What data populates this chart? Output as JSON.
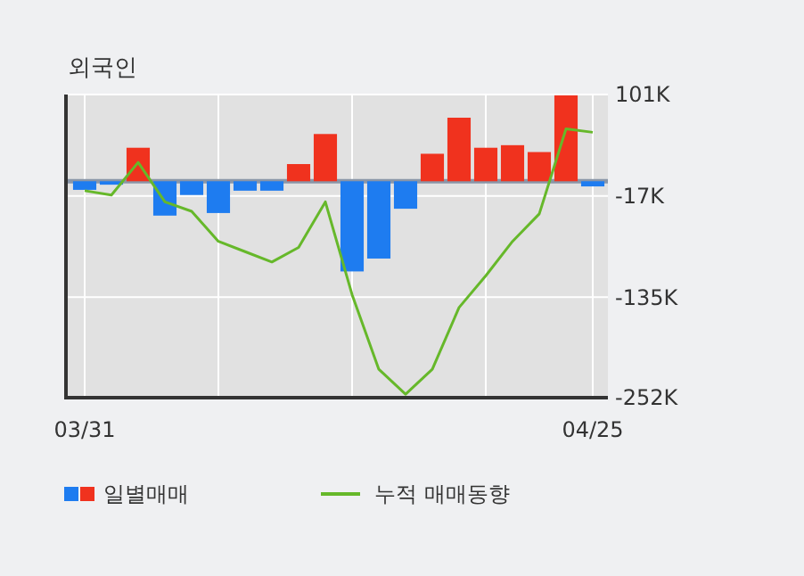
{
  "chart_data": {
    "type": "bar",
    "title": "외국인",
    "categories": [
      "03/31",
      null,
      null,
      null,
      null,
      null,
      null,
      null,
      null,
      null,
      null,
      null,
      null,
      null,
      null,
      null,
      null,
      null,
      null,
      "04/25"
    ],
    "series": [
      {
        "name": "일별매매",
        "colors": [
          "#1e7cf0",
          "#1e7cf0",
          "#f0321e",
          "#1e7cf0",
          "#1e7cf0",
          "#1e7cf0",
          "#1e7cf0",
          "#1e7cf0",
          "#f0321e",
          "#f0321e",
          "#1e7cf0",
          "#1e7cf0",
          "#1e7cf0",
          "#f0321e",
          "#f0321e",
          "#f0321e",
          "#f0321e",
          "#f0321e",
          "#f0321e",
          "#1e7cf0"
        ],
        "values": [
          -10,
          -4,
          39,
          -40,
          -16,
          -37,
          -11,
          -11,
          20,
          55,
          -105,
          -90,
          -32,
          32,
          74,
          39,
          42,
          34,
          100,
          -6
        ]
      },
      {
        "name": "누적 매매동향",
        "type": "line",
        "color": "#66b82a",
        "values": [
          -11,
          -16,
          22,
          -24,
          -35,
          -70,
          -82,
          -94,
          -77,
          -24,
          -132,
          -219,
          -248,
          -219,
          -147,
          -110,
          -70,
          -38,
          61,
          57
        ]
      }
    ],
    "ylim": [
      -252,
      101
    ],
    "yticks": [
      {
        "value": 101,
        "label": "101K"
      },
      {
        "value": -17,
        "label": "-17K"
      },
      {
        "value": -135,
        "label": "-135K"
      },
      {
        "value": -252,
        "label": "-252K"
      }
    ],
    "ref_lines": [
      {
        "axis": "y",
        "value": 0,
        "color": "#8a96a8"
      }
    ],
    "grid": true,
    "legend": "bottom",
    "marker": "none",
    "line_style": "solid"
  }
}
